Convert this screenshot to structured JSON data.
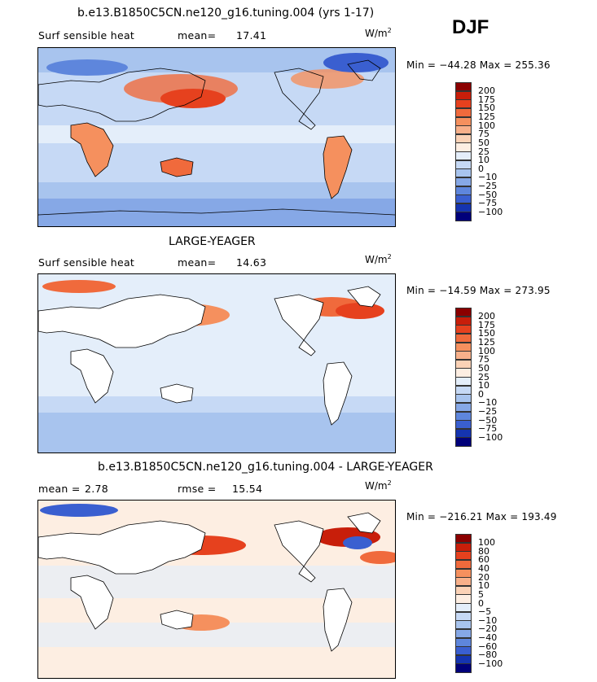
{
  "season": "DJF",
  "panels": [
    {
      "title": "b.e13.B1850C5CN.ne120_g16.tuning.004 (yrs 1-17)",
      "variable": "Surf sensible heat",
      "stat1_label": "mean=",
      "stat1_value": "17.41",
      "units_base": "W/m",
      "units_exp": "2",
      "min_label": "Min =",
      "min_value": "−44.28",
      "max_label": "Max =",
      "max_value": "255.36",
      "levels": [
        "200",
        "175",
        "150",
        "125",
        "100",
        "75",
        "50",
        "25",
        "10",
        "0",
        "−10",
        "−25",
        "−50",
        "−75",
        "−100"
      ],
      "colors": [
        "#8b0000",
        "#c81e0a",
        "#e6411e",
        "#f06a3c",
        "#f5905e",
        "#f8b08a",
        "#fbd2b6",
        "#fdeee2",
        "#e4eefa",
        "#c6d9f5",
        "#a8c4ee",
        "#86a8e6",
        "#5e86dc",
        "#3a5fd0",
        "#1534b0",
        "#00007a"
      ]
    },
    {
      "title": "LARGE-YEAGER",
      "variable": "Surf sensible heat",
      "stat1_label": "mean=",
      "stat1_value": "14.63",
      "units_base": "W/m",
      "units_exp": "2",
      "min_label": "Min =",
      "min_value": "−14.59",
      "max_label": "Max =",
      "max_value": "273.95",
      "levels": [
        "200",
        "175",
        "150",
        "125",
        "100",
        "75",
        "50",
        "25",
        "10",
        "0",
        "−10",
        "−25",
        "−50",
        "−75",
        "−100"
      ],
      "colors": [
        "#8b0000",
        "#c81e0a",
        "#e6411e",
        "#f06a3c",
        "#f5905e",
        "#f8b08a",
        "#fbd2b6",
        "#fdeee2",
        "#e4eefa",
        "#c6d9f5",
        "#a8c4ee",
        "#86a8e6",
        "#5e86dc",
        "#3a5fd0",
        "#1534b0",
        "#00007a"
      ]
    },
    {
      "title": "b.e13.B1850C5CN.ne120_g16.tuning.004 - LARGE-YEAGER",
      "variable": "",
      "stat1_label": "mean =",
      "stat1_value": "2.78",
      "stat2_label": "rmse =",
      "stat2_value": "15.54",
      "units_base": "W/m",
      "units_exp": "2",
      "min_label": "Min =",
      "min_value": "−216.21",
      "max_label": "Max =",
      "max_value": "193.49",
      "levels": [
        "100",
        "80",
        "60",
        "40",
        "20",
        "10",
        "5",
        "0",
        "−5",
        "−10",
        "−20",
        "−40",
        "−60",
        "−80",
        "−100"
      ],
      "colors": [
        "#8b0000",
        "#c81e0a",
        "#e6411e",
        "#f06a3c",
        "#f5905e",
        "#f8b08a",
        "#fbd2b6",
        "#fdeee2",
        "#e4eefa",
        "#c6d9f5",
        "#a8c4ee",
        "#86a8e6",
        "#5e86dc",
        "#3a5fd0",
        "#1534b0",
        "#00007a"
      ]
    }
  ]
}
